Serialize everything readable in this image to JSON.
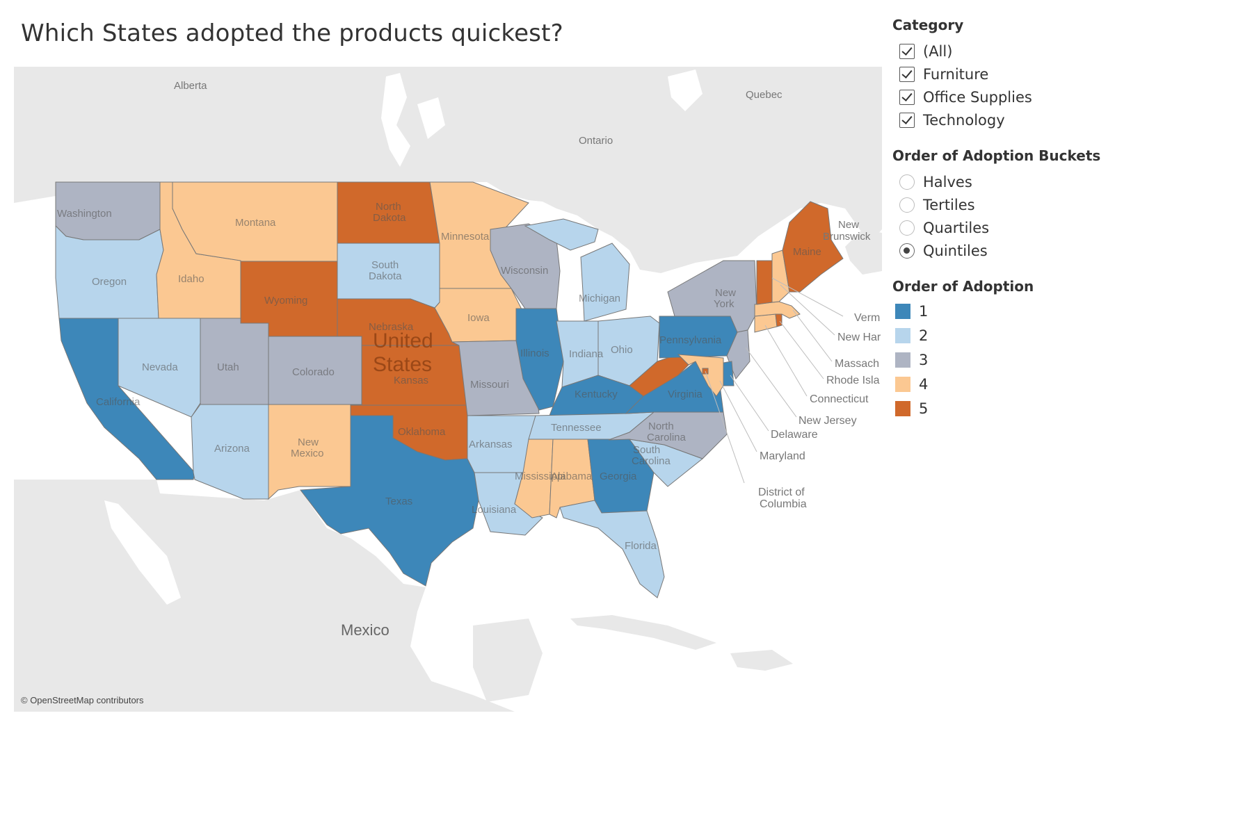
{
  "title": "Which States adopted the products quickest?",
  "attribution": "© OpenStreetMap contributors",
  "colors": {
    "q1": "#3d87b9",
    "q2": "#b7d5ec",
    "q3": "#aeb4c3",
    "q4": "#fbc892",
    "q5": "#d0692b",
    "land": "#e8e8e8",
    "water": "#ffffff",
    "border": "#777777"
  },
  "category_filter": {
    "title": "Category",
    "options": [
      {
        "label": "(All)",
        "checked": true
      },
      {
        "label": "Furniture",
        "checked": true
      },
      {
        "label": "Office Supplies",
        "checked": true
      },
      {
        "label": "Technology",
        "checked": true
      }
    ]
  },
  "buckets_filter": {
    "title": "Order of Adoption Buckets",
    "options": [
      {
        "label": "Halves",
        "selected": false
      },
      {
        "label": "Tertiles",
        "selected": false
      },
      {
        "label": "Quartiles",
        "selected": false
      },
      {
        "label": "Quintiles",
        "selected": true
      }
    ]
  },
  "legend": {
    "title": "Order of Adoption",
    "items": [
      {
        "label": "1",
        "color": "#3d87b9"
      },
      {
        "label": "2",
        "color": "#b7d5ec"
      },
      {
        "label": "3",
        "color": "#aeb4c3"
      },
      {
        "label": "4",
        "color": "#fbc892"
      },
      {
        "label": "5",
        "color": "#d0692b"
      }
    ]
  },
  "map": {
    "country_label_line1": "United",
    "country_label_line2": "States",
    "geo_labels": [
      "Alberta",
      "Ontario",
      "Quebec",
      "Mexico",
      "New Brunswick"
    ],
    "states": [
      {
        "name": "Washington",
        "quintile": 3
      },
      {
        "name": "Oregon",
        "quintile": 2
      },
      {
        "name": "California",
        "quintile": 1
      },
      {
        "name": "Idaho",
        "quintile": 4
      },
      {
        "name": "Montana",
        "quintile": 4
      },
      {
        "name": "Wyoming",
        "quintile": 5
      },
      {
        "name": "Nevada",
        "quintile": 2
      },
      {
        "name": "Utah",
        "quintile": 3
      },
      {
        "name": "Colorado",
        "quintile": 3
      },
      {
        "name": "Arizona",
        "quintile": 2
      },
      {
        "name": "New Mexico",
        "quintile": 4
      },
      {
        "name": "North Dakota",
        "quintile": 5
      },
      {
        "name": "South Dakota",
        "quintile": 2
      },
      {
        "name": "Nebraska",
        "quintile": 5
      },
      {
        "name": "Kansas",
        "quintile": 5
      },
      {
        "name": "Oklahoma",
        "quintile": 5
      },
      {
        "name": "Texas",
        "quintile": 1
      },
      {
        "name": "Minnesota",
        "quintile": 4
      },
      {
        "name": "Iowa",
        "quintile": 4
      },
      {
        "name": "Missouri",
        "quintile": 3
      },
      {
        "name": "Arkansas",
        "quintile": 2
      },
      {
        "name": "Louisiana",
        "quintile": 2
      },
      {
        "name": "Wisconsin",
        "quintile": 3
      },
      {
        "name": "Illinois",
        "quintile": 1
      },
      {
        "name": "Michigan",
        "quintile": 2
      },
      {
        "name": "Indiana",
        "quintile": 2
      },
      {
        "name": "Ohio",
        "quintile": 2
      },
      {
        "name": "Kentucky",
        "quintile": 1
      },
      {
        "name": "Tennessee",
        "quintile": 2
      },
      {
        "name": "Mississippi",
        "quintile": 4
      },
      {
        "name": "Alabama",
        "quintile": 4
      },
      {
        "name": "Georgia",
        "quintile": 1
      },
      {
        "name": "Florida",
        "quintile": 2
      },
      {
        "name": "South Carolina",
        "quintile": 2
      },
      {
        "name": "North Carolina",
        "quintile": 3
      },
      {
        "name": "Virginia",
        "quintile": 1
      },
      {
        "name": "West Virginia",
        "quintile": 5
      },
      {
        "name": "Pennsylvania",
        "quintile": 1
      },
      {
        "name": "New York",
        "quintile": 3
      },
      {
        "name": "New Jersey",
        "quintile": 3
      },
      {
        "name": "Delaware",
        "quintile": 1
      },
      {
        "name": "Maryland",
        "quintile": 4
      },
      {
        "name": "District of Columbia",
        "quintile": 5
      },
      {
        "name": "Connecticut",
        "quintile": 4
      },
      {
        "name": "Rhode Island",
        "quintile": 5
      },
      {
        "name": "Massachusetts",
        "quintile": 4
      },
      {
        "name": "Vermont",
        "quintile": 5
      },
      {
        "name": "New Hampshire",
        "quintile": 4
      },
      {
        "name": "Maine",
        "quintile": 5
      }
    ],
    "state_labels": {
      "Washington": "Washington",
      "Oregon": "Oregon",
      "California": "California",
      "Idaho": "Idaho",
      "Montana": "Montana",
      "Wyoming": "Wyoming",
      "Nevada": "Nevada",
      "Utah": "Utah",
      "Colorado": "Colorado",
      "Arizona": "Arizona",
      "New Mexico 1": "New",
      "New Mexico 2": "Mexico",
      "North Dakota 1": "North",
      "North Dakota 2": "Dakota",
      "South Dakota 1": "South",
      "South Dakota 2": "Dakota",
      "Nebraska": "Nebraska",
      "Kansas": "Kansas",
      "Oklahoma": "Oklahoma",
      "Texas": "Texas",
      "Minnesota": "Minnesota",
      "Iowa": "Iowa",
      "Missouri": "Missouri",
      "Arkansas": "Arkansas",
      "Louisiana": "Louisiana",
      "Wisconsin": "Wisconsin",
      "Illinois": "Illinois",
      "Michigan": "Michigan",
      "Indiana": "Indiana",
      "Ohio": "Ohio",
      "Kentucky": "Kentucky",
      "Tennessee": "Tennessee",
      "Mississippi": "Mississippi",
      "Alabama": "Alabama",
      "Georgia": "Georgia",
      "Florida": "Florida",
      "South Carolina 1": "South",
      "South Carolina 2": "Carolina",
      "North Carolina 1": "North",
      "North Carolina 2": "Carolina",
      "Virginia": "Virginia",
      "Pennsylvania": "Pennsylvania",
      "New York 1": "New",
      "New York 2": "York",
      "Maine": "Maine"
    },
    "callouts": [
      "Verm",
      "New Har",
      "Massach",
      "Rhode Isla",
      "Connecticut",
      "New Jersey",
      "Delaware",
      "Maryland",
      "District of",
      "Columbia"
    ]
  }
}
